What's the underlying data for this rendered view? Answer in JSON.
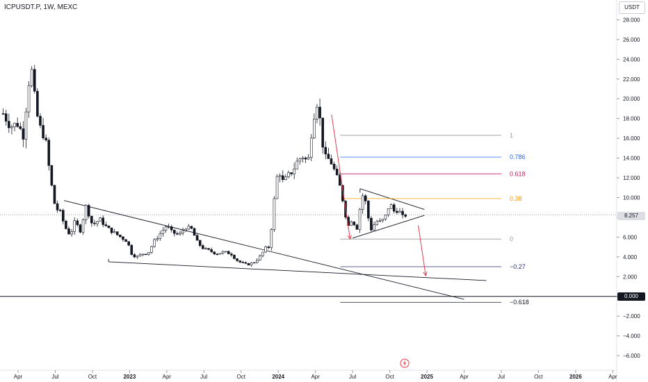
{
  "header": {
    "title": "ICPUSDT.P, 1W, MEXC"
  },
  "price_scale": {
    "unit_button": "USDT",
    "current_price_label": "8.257",
    "zero_label": "0.000"
  },
  "chart_data": {
    "type": "candlestick",
    "symbol": "ICPUSDT.P",
    "timeframe": "1W",
    "exchange": "MEXC",
    "y_axis": {
      "min": -7,
      "max": 29,
      "ticks": [
        "28.000",
        "26.000",
        "24.000",
        "22.000",
        "20.000",
        "18.000",
        "16.000",
        "14.000",
        "12.000",
        "10.000",
        "8.000",
        "6.000",
        "4.000",
        "2.000",
        "0.000",
        "−2.000",
        "−4.000",
        "−6.000"
      ],
      "tick_values": [
        28,
        26,
        24,
        22,
        20,
        18,
        16,
        14,
        12,
        10,
        8,
        6,
        4,
        2,
        0,
        -2,
        -4,
        -6
      ]
    },
    "x_axis": {
      "ticks": [
        {
          "label": "Apr",
          "month": 0
        },
        {
          "label": "Jul",
          "month": 3
        },
        {
          "label": "Oct",
          "month": 6
        },
        {
          "label": "2023",
          "month": 9
        },
        {
          "label": "Apr",
          "month": 12
        },
        {
          "label": "Jul",
          "month": 15
        },
        {
          "label": "Oct",
          "month": 18
        },
        {
          "label": "2024",
          "month": 21
        },
        {
          "label": "Apr",
          "month": 24
        },
        {
          "label": "Jul",
          "month": 27
        },
        {
          "label": "Oct",
          "month": 30
        },
        {
          "label": "2025",
          "month": 33
        },
        {
          "label": "Apr",
          "month": 36
        },
        {
          "label": "Jul",
          "month": 39
        },
        {
          "label": "Oct",
          "month": 42
        },
        {
          "label": "2026",
          "month": 45
        },
        {
          "label": "Apr",
          "month": 48
        }
      ]
    },
    "current_price": 8.257,
    "price_path": [
      [
        -1.2,
        18.5
      ],
      [
        -0.6,
        17.2
      ],
      [
        0.0,
        17.5
      ],
      [
        0.4,
        16.2
      ],
      [
        0.8,
        21.0
      ],
      [
        1.0,
        23.0
      ],
      [
        1.2,
        22.5
      ],
      [
        1.4,
        19.0
      ],
      [
        1.8,
        17.0
      ],
      [
        2.2,
        16.0
      ],
      [
        2.6,
        12.0
      ],
      [
        3.0,
        9.0
      ],
      [
        3.4,
        8.5
      ],
      [
        3.8,
        7.0
      ],
      [
        4.2,
        6.2
      ],
      [
        4.6,
        7.6
      ],
      [
        5.0,
        6.6
      ],
      [
        5.5,
        9.2
      ],
      [
        6.0,
        7.2
      ],
      [
        6.6,
        7.8
      ],
      [
        7.2,
        6.9
      ],
      [
        7.8,
        6.4
      ],
      [
        8.4,
        5.9
      ],
      [
        8.8,
        5.6
      ],
      [
        9.2,
        4.2
      ],
      [
        9.6,
        4.0
      ],
      [
        10.0,
        4.3
      ],
      [
        10.5,
        4.4
      ],
      [
        11.0,
        5.6
      ],
      [
        11.5,
        6.4
      ],
      [
        12.0,
        7.2
      ],
      [
        12.4,
        6.5
      ],
      [
        13.0,
        6.2
      ],
      [
        13.5,
        7.0
      ],
      [
        14.0,
        6.8
      ],
      [
        14.5,
        5.4
      ],
      [
        15.0,
        4.8
      ],
      [
        15.5,
        4.6
      ],
      [
        16.0,
        4.3
      ],
      [
        16.6,
        4.5
      ],
      [
        17.2,
        4.3
      ],
      [
        17.6,
        3.7
      ],
      [
        18.0,
        3.4
      ],
      [
        18.5,
        3.2
      ],
      [
        19.0,
        3.4
      ],
      [
        19.5,
        4.0
      ],
      [
        20.0,
        4.9
      ],
      [
        20.3,
        5.0
      ],
      [
        20.6,
        9.0
      ],
      [
        21.0,
        13.0
      ],
      [
        21.4,
        11.5
      ],
      [
        21.8,
        12.2
      ],
      [
        22.2,
        12.8
      ],
      [
        22.6,
        13.8
      ],
      [
        23.0,
        14.2
      ],
      [
        23.4,
        13.5
      ],
      [
        23.8,
        18.0
      ],
      [
        24.2,
        20.0
      ],
      [
        24.5,
        16.0
      ],
      [
        24.8,
        14.0
      ],
      [
        25.2,
        13.8
      ],
      [
        25.6,
        12.5
      ],
      [
        26.0,
        11.0
      ],
      [
        26.3,
        9.2
      ],
      [
        26.6,
        7.0
      ],
      [
        27.0,
        8.0
      ],
      [
        27.3,
        6.5
      ],
      [
        27.6,
        9.0
      ],
      [
        27.9,
        10.7
      ],
      [
        28.2,
        8.3
      ],
      [
        28.5,
        6.8
      ],
      [
        28.9,
        7.6
      ],
      [
        29.3,
        7.5
      ],
      [
        29.7,
        8.2
      ],
      [
        30.0,
        9.5
      ],
      [
        30.3,
        8.6
      ],
      [
        30.7,
        8.8
      ],
      [
        31.0,
        8.0
      ],
      [
        31.3,
        8.257
      ]
    ],
    "fibonacci": {
      "levels": [
        {
          "label": "1",
          "value": 16.3,
          "color": "#9598a1"
        },
        {
          "label": "0.786",
          "value": 14.1,
          "color": "#2962ff"
        },
        {
          "label": "0.618",
          "value": 12.4,
          "color": "#c2185b"
        },
        {
          "label": "0.38",
          "value": 9.9,
          "color": "#ff9800"
        },
        {
          "label": "0",
          "value": 5.8,
          "color": "#9598a1"
        },
        {
          "label": "−0.27",
          "value": 3.0,
          "color": "#2a2e7a"
        },
        {
          "label": "−0.618",
          "value": -0.6,
          "color": "#131722"
        }
      ]
    }
  }
}
